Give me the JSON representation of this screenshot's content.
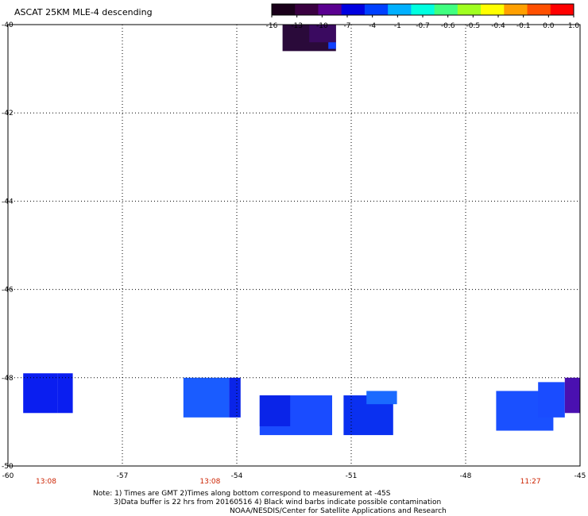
{
  "title": "ASCAT 25KM MLE-4 descending",
  "colorbar": {
    "labels": [
      "-16",
      "-13",
      "-10",
      "-7",
      "-4",
      "-1",
      "-0.7",
      "-0.6",
      "-0.5",
      "-0.4",
      "-0.1",
      "0.0",
      "1.0"
    ],
    "colors": [
      "#1a001a",
      "#3a0040",
      "#5a0090",
      "#0000e0",
      "#0040ff",
      "#00b0ff",
      "#00ffe0",
      "#40ff80",
      "#a0ff20",
      "#ffff00",
      "#ffa000",
      "#ff5000",
      "#ff0000"
    ]
  },
  "notes": {
    "line1": "Note: 1) Times are GMT 2)Times along bottom correspond to measurement at -45S",
    "line2": "3)Data buffer is 22 hrs from 20160516 4) Black wind barbs indicate possible contamination",
    "line3": "NOAA/NESDIS/Center for Satellite Applications and Research"
  },
  "chart_data": {
    "type": "heatmap",
    "xlim": [
      -60,
      -45
    ],
    "ylim": [
      -50,
      -40
    ],
    "xticks": [
      "-60",
      "-57",
      "-54",
      "-51",
      "-48",
      "-45"
    ],
    "yticks": [
      "-40",
      "-42",
      "-44",
      "-46",
      "-48",
      "-50"
    ],
    "times": [
      {
        "lon": -59,
        "label": "13:08"
      },
      {
        "lon": -54.7,
        "label": "13:08"
      },
      {
        "lon": -46.3,
        "label": "11:27"
      }
    ],
    "cells": [
      {
        "lon0": -52.8,
        "lon1": -51.4,
        "lat0": -40.6,
        "lat1": -40.0,
        "color": "#2a0a3a"
      },
      {
        "lon0": -52.1,
        "lon1": -51.4,
        "lat0": -40.4,
        "lat1": -40.0,
        "color": "#3a0a60"
      },
      {
        "lon0": -51.6,
        "lon1": -51.4,
        "lat0": -40.55,
        "lat1": -40.4,
        "color": "#1040ff"
      },
      {
        "lon0": -59.6,
        "lon1": -58.7,
        "lat0": -48.8,
        "lat1": -47.9,
        "color": "#0a1ef0"
      },
      {
        "lon0": -58.7,
        "lon1": -58.3,
        "lat0": -48.8,
        "lat1": -47.9,
        "color": "#0a1ef0"
      },
      {
        "lon0": -55.4,
        "lon1": -54.2,
        "lat0": -48.9,
        "lat1": -48.0,
        "color": "#1a5cff"
      },
      {
        "lon0": -54.2,
        "lon1": -53.9,
        "lat0": -48.9,
        "lat1": -48.0,
        "color": "#0a24e8"
      },
      {
        "lon0": -53.4,
        "lon1": -51.5,
        "lat0": -49.3,
        "lat1": -48.4,
        "color": "#1a4cff"
      },
      {
        "lon0": -53.4,
        "lon1": -52.6,
        "lat0": -49.1,
        "lat1": -48.4,
        "color": "#0a24e8"
      },
      {
        "lon0": -51.2,
        "lon1": -49.9,
        "lat0": -49.3,
        "lat1": -48.4,
        "color": "#0a30f0"
      },
      {
        "lon0": -50.6,
        "lon1": -49.8,
        "lat0": -48.6,
        "lat1": -48.3,
        "color": "#1a6aff"
      },
      {
        "lon0": -47.2,
        "lon1": -45.7,
        "lat0": -49.2,
        "lat1": -48.3,
        "color": "#1a50ff"
      },
      {
        "lon0": -46.1,
        "lon1": -45.4,
        "lat0": -48.9,
        "lat1": -48.1,
        "color": "#1a4cff"
      },
      {
        "lon0": -45.4,
        "lon1": -45.0,
        "lat0": -48.8,
        "lat1": -48.0,
        "color": "#4a10b0"
      }
    ]
  }
}
